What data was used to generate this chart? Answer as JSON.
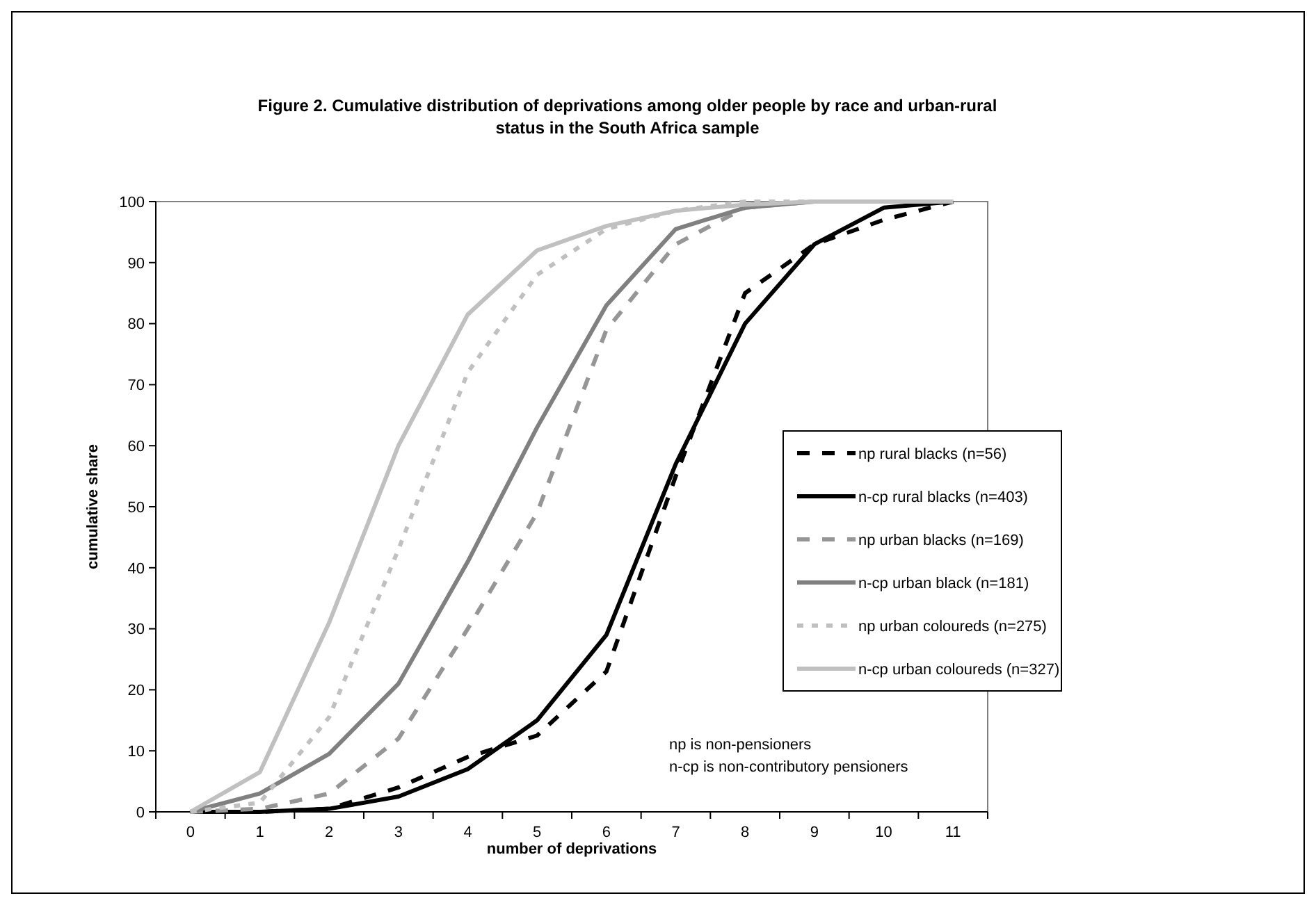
{
  "chart_data": {
    "type": "line",
    "title": "Figure 2. Cumulative distribution of deprivations among older people by race and urban-rural status in the South Africa sample",
    "xlabel": "number of deprivations",
    "ylabel": "cumulative share",
    "categories": [
      "0",
      "1",
      "2",
      "3",
      "4",
      "5",
      "6",
      "7",
      "8",
      "9",
      "10",
      "11"
    ],
    "ylim": [
      0,
      100
    ],
    "yticks": [
      0,
      10,
      20,
      30,
      40,
      50,
      60,
      70,
      80,
      90,
      100
    ],
    "grid": false,
    "legend": "right",
    "marker": "none",
    "series": [
      {
        "name": "np rural blacks (n=56)",
        "color": "#000000",
        "line_style": "dashed",
        "values": [
          0,
          0,
          0.5,
          4,
          9,
          12.5,
          23,
          55,
          85,
          93,
          97,
          100
        ]
      },
      {
        "name": "n-cp rural blacks (n=403)",
        "color": "#000000",
        "line_style": "solid",
        "values": [
          0,
          0,
          0.5,
          2.5,
          7,
          15,
          29,
          57,
          80,
          93,
          99,
          100
        ]
      },
      {
        "name": "np urban blacks (n=169)",
        "color": "#969696",
        "line_style": "dashed",
        "values": [
          0,
          0.5,
          3,
          12,
          30,
          49,
          79,
          93,
          99,
          100,
          100,
          100
        ]
      },
      {
        "name": "n-cp urban black (n=181)",
        "color": "#808080",
        "line_style": "solid",
        "values": [
          0,
          3,
          9.5,
          21,
          41,
          63,
          83,
          95.5,
          99,
          100,
          100,
          100
        ]
      },
      {
        "name": "np urban coloureds (n=275)",
        "color": "#c0c0c0",
        "line_style": "dotted",
        "values": [
          0,
          1.5,
          15.5,
          43,
          72,
          88,
          95.5,
          98.5,
          100,
          100,
          100,
          100
        ]
      },
      {
        "name": "n-cp urban coloureds (n=327)",
        "color": "#c0c0c0",
        "line_style": "solid",
        "values": [
          0,
          6.5,
          31,
          60,
          81.5,
          92,
          96,
          98.5,
          99.5,
          100,
          100,
          100
        ]
      }
    ],
    "annotations": [
      "np is non-pensioners",
      "n-cp is non-contributory pensioners"
    ]
  }
}
